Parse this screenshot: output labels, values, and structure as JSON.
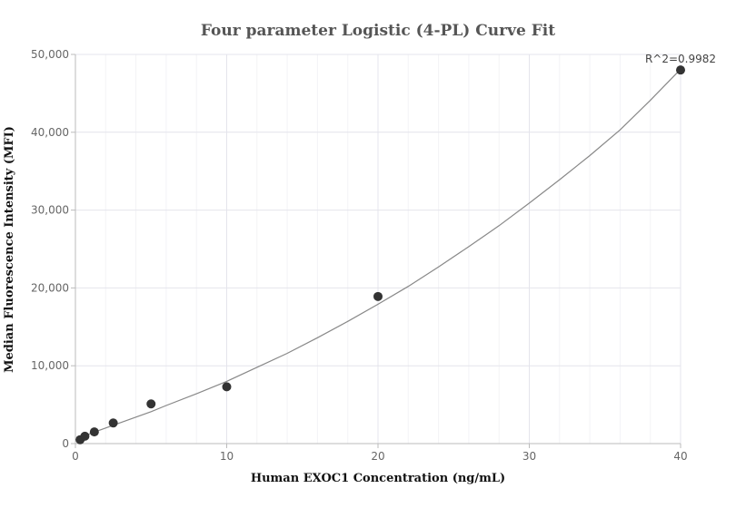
{
  "chart_data": {
    "type": "scatter",
    "title": "Four parameter Logistic (4-PL) Curve Fit",
    "xlabel": "Human EXOC1 Concentration (ng/mL)",
    "ylabel": "Median Fluorescence Intensity (MFI)",
    "xlim": [
      0,
      40
    ],
    "ylim": [
      0,
      50000
    ],
    "x_ticks": [
      0,
      10,
      20,
      30,
      40
    ],
    "x_tick_labels": [
      "0",
      "10",
      "20",
      "30",
      "40"
    ],
    "y_ticks": [
      0,
      10000,
      20000,
      30000,
      40000,
      50000
    ],
    "y_tick_labels": [
      "0",
      "10,000",
      "20,000",
      "30,000",
      "40,000",
      "50,000"
    ],
    "grid": true,
    "points": [
      {
        "x": 0.3125,
        "y": 500
      },
      {
        "x": 0.625,
        "y": 950
      },
      {
        "x": 1.25,
        "y": 1500
      },
      {
        "x": 2.5,
        "y": 2650
      },
      {
        "x": 5,
        "y": 5100
      },
      {
        "x": 10,
        "y": 7300
      },
      {
        "x": 20,
        "y": 18900
      },
      {
        "x": 40,
        "y": 48000
      }
    ],
    "fit_curve": {
      "x": [
        0,
        1,
        2,
        3,
        4,
        5,
        6,
        8,
        10,
        12,
        14,
        16,
        18,
        20,
        22,
        24,
        26,
        28,
        30,
        32,
        34,
        36,
        38,
        40
      ],
      "y": [
        500,
        1300,
        2000,
        2700,
        3400,
        4100,
        4900,
        6400,
        8000,
        9800,
        11600,
        13600,
        15700,
        17900,
        20200,
        22700,
        25300,
        28000,
        30900,
        33900,
        37000,
        40300,
        44100,
        48100
      ]
    },
    "annotation": "R^2=0.9982"
  }
}
